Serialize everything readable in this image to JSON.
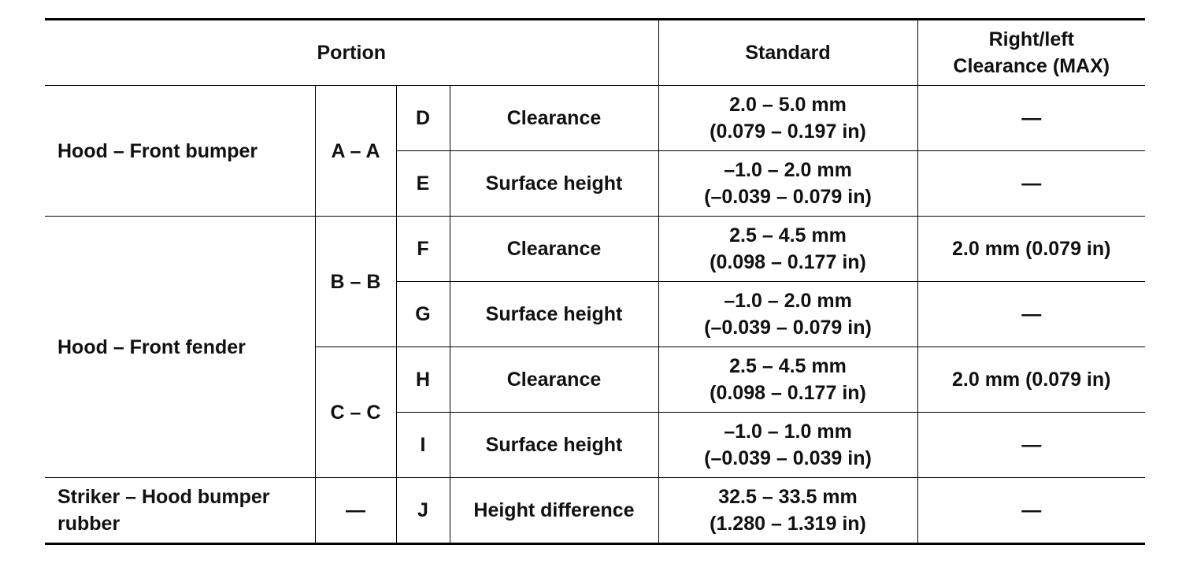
{
  "header": {
    "portion": "Portion",
    "standard": "Standard",
    "max_clearance": [
      "Right/left",
      "Clearance (MAX)"
    ]
  },
  "groups": [
    {
      "portion": [
        "Hood – Front bumper"
      ],
      "sections": [
        {
          "section": "A – A",
          "items": [
            {
              "mark": "D",
              "item": "Clearance",
              "standard": [
                "2.0 – 5.0 mm",
                "(0.079 – 0.197 in)"
              ],
              "max": "—"
            },
            {
              "mark": "E",
              "item": "Surface height",
              "standard": [
                "–1.0 – 2.0 mm",
                "(–0.039 – 0.079 in)"
              ],
              "max": "—"
            }
          ]
        }
      ]
    },
    {
      "portion": [
        "Hood – Front fender"
      ],
      "sections": [
        {
          "section": "B – B",
          "items": [
            {
              "mark": "F",
              "item": "Clearance",
              "standard": [
                "2.5 – 4.5 mm",
                "(0.098 – 0.177 in)"
              ],
              "max": "2.0 mm (0.079 in)"
            },
            {
              "mark": "G",
              "item": "Surface height",
              "standard": [
                "–1.0 – 2.0 mm",
                "(–0.039 – 0.079 in)"
              ],
              "max": "—"
            }
          ]
        },
        {
          "section": "C – C",
          "items": [
            {
              "mark": "H",
              "item": "Clearance",
              "standard": [
                "2.5 – 4.5 mm",
                "(0.098 – 0.177 in)"
              ],
              "max": "2.0 mm (0.079 in)"
            },
            {
              "mark": "I",
              "item": "Surface height",
              "standard": [
                "–1.0 – 1.0 mm",
                "(–0.039 – 0.039 in)"
              ],
              "max": "—"
            }
          ]
        }
      ]
    },
    {
      "portion": [
        "Striker – Hood bumper",
        "rubber"
      ],
      "sections": [
        {
          "section": "—",
          "items": [
            {
              "mark": "J",
              "item": "Height difference",
              "standard": [
                "32.5 – 33.5 mm",
                "(1.280 – 1.319 in)"
              ],
              "max": "—"
            }
          ]
        }
      ]
    }
  ]
}
